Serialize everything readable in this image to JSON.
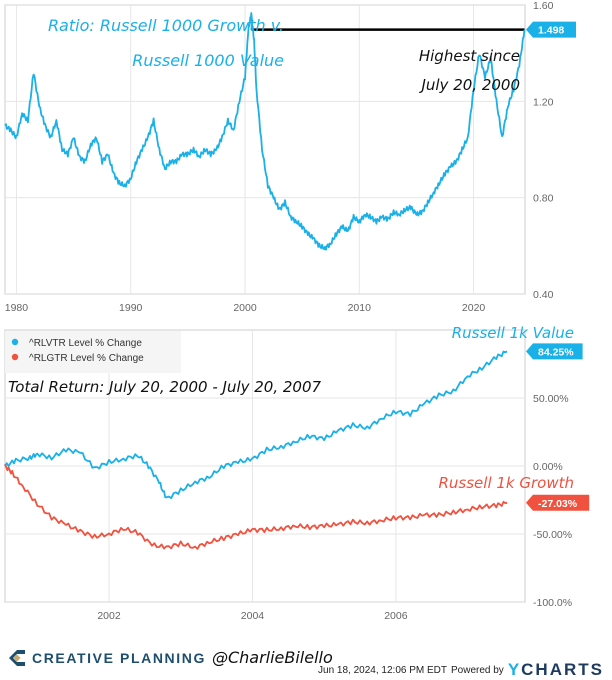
{
  "chart_data": [
    {
      "type": "line",
      "title": "Ratio: Russell 1000 Growth v. Russell 1000 Value",
      "title_lines": [
        "Ratio: Russell 1000 Growth v.",
        "Russell 1000 Value"
      ],
      "annotation_lines": [
        "Highest since",
        "July 20, 2000"
      ],
      "reference_line": {
        "value": 1.498,
        "from_x": 2000.55,
        "to_x": 2024.46
      },
      "xlabel": "",
      "ylabel": "",
      "xlim": [
        1979,
        2024.5
      ],
      "ylim": [
        0.4,
        1.6
      ],
      "x_ticks": [
        1980,
        1990,
        2000,
        2010,
        2020
      ],
      "y_ticks": [
        0.4,
        0.8,
        1.2,
        1.6
      ],
      "y_tick_labels": [
        "0.40",
        "0.80",
        "1.20",
        "1.60"
      ],
      "grid": true,
      "last_value_label": "1.498",
      "series": [
        {
          "name": "Russell 1000 Growth / Russell 1000 Value",
          "color": "#1ab0e8",
          "x": [
            1979.0,
            1979.5,
            1980.0,
            1980.5,
            1981.0,
            1981.5,
            1982.0,
            1982.5,
            1983.0,
            1983.5,
            1984.0,
            1984.5,
            1985.0,
            1985.5,
            1986.0,
            1986.5,
            1987.0,
            1987.5,
            1988.0,
            1988.5,
            1989.0,
            1989.5,
            1990.0,
            1990.5,
            1991.0,
            1991.5,
            1992.0,
            1992.5,
            1993.0,
            1993.5,
            1994.0,
            1994.5,
            1995.0,
            1995.5,
            1996.0,
            1996.5,
            1997.0,
            1997.5,
            1998.0,
            1998.5,
            1999.0,
            1999.5,
            2000.0,
            2000.3,
            2000.55,
            2000.8,
            2001.0,
            2001.5,
            2002.0,
            2002.5,
            2003.0,
            2003.5,
            2004.0,
            2004.5,
            2005.0,
            2005.5,
            2006.0,
            2006.5,
            2007.0,
            2007.5,
            2008.0,
            2008.5,
            2009.0,
            2009.5,
            2010.0,
            2010.5,
            2011.0,
            2011.5,
            2012.0,
            2012.5,
            2013.0,
            2013.5,
            2014.0,
            2014.5,
            2015.0,
            2015.5,
            2016.0,
            2016.5,
            2017.0,
            2017.5,
            2018.0,
            2018.5,
            2019.0,
            2019.5,
            2020.0,
            2020.5,
            2021.0,
            2021.5,
            2022.0,
            2022.5,
            2023.0,
            2023.5,
            2024.0,
            2024.46
          ],
          "y": [
            1.1,
            1.08,
            1.05,
            1.15,
            1.12,
            1.32,
            1.18,
            1.1,
            1.05,
            1.12,
            1.0,
            0.98,
            1.05,
            0.97,
            0.95,
            1.02,
            1.05,
            0.95,
            0.98,
            0.9,
            0.86,
            0.85,
            0.88,
            0.95,
            1.0,
            1.05,
            1.12,
            1.0,
            0.92,
            0.95,
            0.95,
            0.98,
            0.98,
            1.0,
            0.97,
            1.0,
            0.98,
            1.0,
            1.05,
            1.12,
            1.08,
            1.2,
            1.3,
            1.5,
            1.56,
            1.45,
            1.25,
            1.0,
            0.85,
            0.8,
            0.75,
            0.78,
            0.72,
            0.7,
            0.68,
            0.65,
            0.63,
            0.6,
            0.59,
            0.61,
            0.65,
            0.68,
            0.66,
            0.72,
            0.7,
            0.73,
            0.72,
            0.7,
            0.72,
            0.71,
            0.74,
            0.73,
            0.75,
            0.76,
            0.73,
            0.74,
            0.78,
            0.82,
            0.86,
            0.9,
            0.93,
            0.95,
            1.0,
            1.05,
            1.25,
            1.4,
            1.3,
            1.38,
            1.2,
            1.05,
            1.18,
            1.25,
            1.35,
            1.498
          ]
        }
      ]
    },
    {
      "type": "line",
      "title": "Total Return: July 20, 2000 - July 20, 2007",
      "xlabel": "",
      "ylabel": "",
      "xlim": [
        2000.55,
        2007.8
      ],
      "ylim": [
        -100,
        100
      ],
      "x_ticks": [
        2002,
        2004,
        2006
      ],
      "y_ticks": [
        -100,
        -50,
        0,
        50
      ],
      "y_tick_labels": [
        "-100.0%",
        "-50.00%",
        "0.00%",
        "50.00%"
      ],
      "grid": true,
      "legend": {
        "position": "top-left",
        "entries": [
          "^RLVTR Level % Change",
          "^RLGTR Level % Change"
        ]
      },
      "series": [
        {
          "name": "^RLVTR Level % Change",
          "label": "Russell 1k Value",
          "color": "#1ab0e8",
          "last_value_label": "84.25%",
          "x": [
            2000.55,
            2000.7,
            2000.9,
            2001.0,
            2001.2,
            2001.4,
            2001.6,
            2001.8,
            2002.0,
            2002.2,
            2002.4,
            2002.55,
            2002.7,
            2002.8,
            2003.0,
            2003.2,
            2003.4,
            2003.6,
            2003.8,
            2004.0,
            2004.2,
            2004.4,
            2004.6,
            2004.8,
            2005.0,
            2005.2,
            2005.4,
            2005.6,
            2005.8,
            2006.0,
            2006.2,
            2006.4,
            2006.6,
            2006.8,
            2007.0,
            2007.2,
            2007.4,
            2007.55
          ],
          "y": [
            0,
            4,
            6,
            9,
            6,
            12,
            10,
            -2,
            3,
            5,
            8,
            0,
            -12,
            -24,
            -18,
            -12,
            -8,
            0,
            3,
            5,
            12,
            14,
            18,
            22,
            20,
            26,
            30,
            28,
            35,
            40,
            38,
            46,
            52,
            55,
            66,
            72,
            80,
            84.25
          ]
        },
        {
          "name": "^RLGTR Level % Change",
          "label": "Russell 1k Growth",
          "color": "#f0523f",
          "last_value_label": "-27.03%",
          "x": [
            2000.55,
            2000.65,
            2000.8,
            2001.0,
            2001.2,
            2001.4,
            2001.6,
            2001.8,
            2002.0,
            2002.2,
            2002.4,
            2002.6,
            2002.8,
            2003.0,
            2003.2,
            2003.4,
            2003.6,
            2003.8,
            2004.0,
            2004.2,
            2004.4,
            2004.6,
            2004.8,
            2005.0,
            2005.2,
            2005.4,
            2005.6,
            2005.8,
            2006.0,
            2006.2,
            2006.4,
            2006.6,
            2006.8,
            2007.0,
            2007.2,
            2007.4,
            2007.55
          ],
          "y": [
            0,
            -5,
            -15,
            -28,
            -38,
            -43,
            -48,
            -52,
            -50,
            -46,
            -49,
            -58,
            -60,
            -57,
            -60,
            -56,
            -53,
            -50,
            -47,
            -47,
            -46,
            -44,
            -45,
            -44,
            -43,
            -41,
            -42,
            -40,
            -38,
            -38,
            -36,
            -36,
            -34,
            -32,
            -30,
            -29,
            -27.03
          ]
        }
      ]
    }
  ],
  "footer": {
    "brand_name": "CREATIVE PLANNING",
    "brand_handle": "@CharlieBilello",
    "timestamp": "Jun 18, 2024, 12:06 PM EDT",
    "powered_by": "Powered by",
    "provider_y": "Y",
    "provider_rest": "CHARTS",
    "logo_colors": {
      "primary": "#1e4e6e",
      "accent": "#c9a86a"
    }
  }
}
